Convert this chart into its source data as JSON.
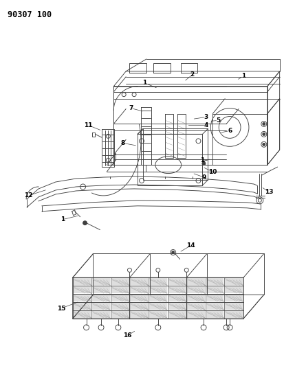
{
  "title": "90307 100",
  "background_color": "#ffffff",
  "line_color": "#404040",
  "text_color": "#000000",
  "lw": 0.65,
  "fig_w": 4.13,
  "fig_h": 5.33,
  "dpi": 100
}
